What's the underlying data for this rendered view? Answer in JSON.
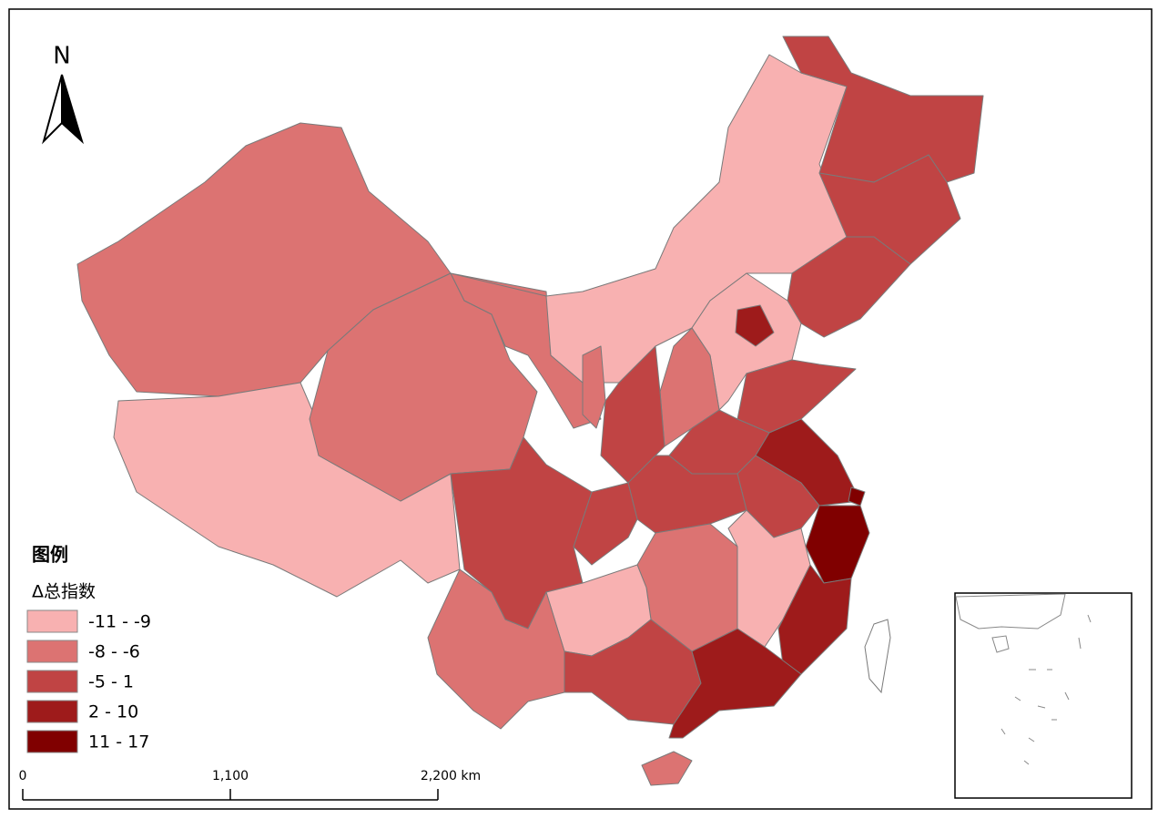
{
  "north_label": "N",
  "legend": {
    "title": "图例",
    "subtitle": "Δ总指数",
    "classes": [
      {
        "label": "-11 - -9",
        "color": "#f8b1b1"
      },
      {
        "label": "-8 - -6",
        "color": "#dc7372"
      },
      {
        "label": "-5 - 1",
        "color": "#c04444"
      },
      {
        "label": "2 - 10",
        "color": "#9e1b1b"
      },
      {
        "label": "11 - 17",
        "color": "#800000"
      }
    ]
  },
  "scale_bar": {
    "labels": [
      "0",
      "1,100",
      "2,200 km"
    ]
  }
}
